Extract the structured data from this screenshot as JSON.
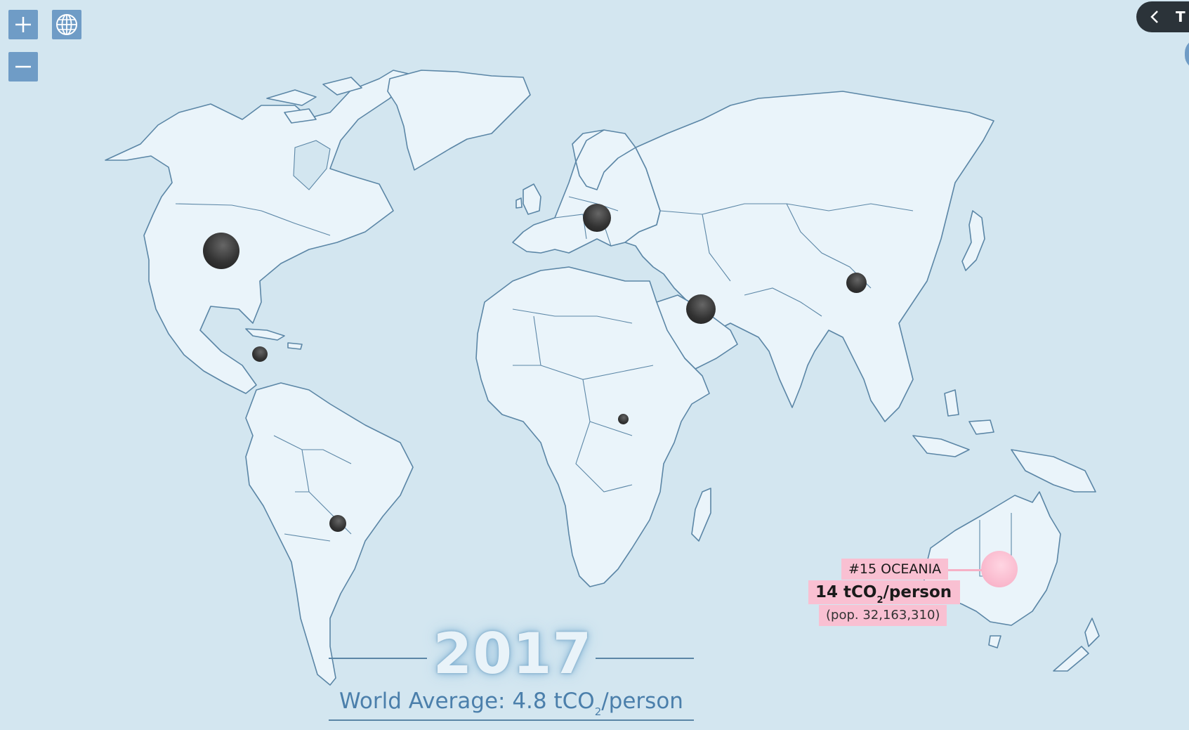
{
  "controls": {
    "zoom_in_icon": "plus-icon",
    "zoom_out_icon": "minus-icon",
    "globe_icon": "globe-icon"
  },
  "side_tab": {
    "label": "T"
  },
  "year": "2017",
  "world_average": {
    "prefix": "World Average: 4.8 tCO",
    "sub": "2",
    "suffix": "/person"
  },
  "highlight": {
    "region": "OCEANIA",
    "rank_label": "#15 OCEANIA",
    "value_prefix": "14 tCO",
    "value_sub": "2",
    "value_suffix": "/person",
    "population_label": "(pop. 32,163,310)",
    "color": "#f9b6cb"
  },
  "regions": [
    {
      "name": "North America"
    },
    {
      "name": "Europe"
    },
    {
      "name": "Middle East"
    },
    {
      "name": "China"
    },
    {
      "name": "Caribbean"
    },
    {
      "name": "Africa"
    },
    {
      "name": "South America"
    },
    {
      "name": "Oceania"
    }
  ],
  "colors": {
    "ocean": "#d3e6f0",
    "land": "#eaf4fa",
    "border": "#5b86a6",
    "bubble": "#333333",
    "control": "#6f9cc6"
  }
}
